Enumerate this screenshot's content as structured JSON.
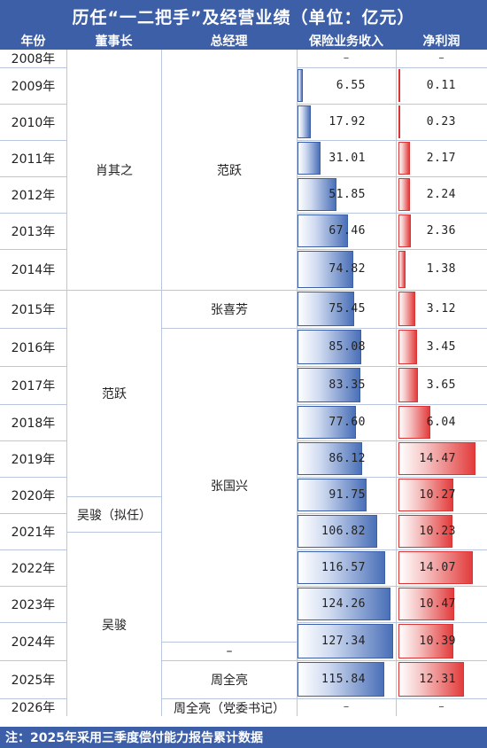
{
  "title": "历任“一二把手”及经营业绩（单位：亿元）",
  "headers": {
    "year": "年份",
    "chairman": "董事长",
    "gm": "总经理",
    "revenue": "保险业务收入",
    "net_profit": "净利润"
  },
  "chairmen": [
    {
      "name": "肖其之"
    },
    {
      "name": "范跃"
    },
    {
      "name": "吴骏（拟任）"
    },
    {
      "name": "吴骏"
    }
  ],
  "gms": [
    {
      "name": "范跃"
    },
    {
      "name": "张喜芳"
    },
    {
      "name": "张国兴"
    },
    {
      "name": "–"
    },
    {
      "name": "周全亮"
    },
    {
      "name": "周全亮（党委书记）"
    }
  ],
  "rows": [
    {
      "year": "2008年",
      "revenue": "–",
      "net_profit": "–"
    },
    {
      "year": "2009年",
      "revenue": "6.55",
      "net_profit": "0.11"
    },
    {
      "year": "2010年",
      "revenue": "17.92",
      "net_profit": "0.23"
    },
    {
      "year": "2011年",
      "revenue": "31.01",
      "net_profit": "2.17"
    },
    {
      "year": "2012年",
      "revenue": "51.85",
      "net_profit": "2.24"
    },
    {
      "year": "2013年",
      "revenue": "67.46",
      "net_profit": "2.36"
    },
    {
      "year": "2014年",
      "revenue": "74.82",
      "net_profit": "1.38"
    },
    {
      "year": "2015年",
      "revenue": "75.45",
      "net_profit": "3.12"
    },
    {
      "year": "2016年",
      "revenue": "85.08",
      "net_profit": "3.45"
    },
    {
      "year": "2017年",
      "revenue": "83.35",
      "net_profit": "3.65"
    },
    {
      "year": "2018年",
      "revenue": "77.60",
      "net_profit": "6.04"
    },
    {
      "year": "2019年",
      "revenue": "86.12",
      "net_profit": "14.47"
    },
    {
      "year": "2020年",
      "revenue": "91.75",
      "net_profit": "10.27"
    },
    {
      "year": "2021年",
      "revenue": "106.82",
      "net_profit": "10.23"
    },
    {
      "year": "2022年",
      "revenue": "116.57",
      "net_profit": "14.07"
    },
    {
      "year": "2023年",
      "revenue": "124.26",
      "net_profit": "10.47"
    },
    {
      "year": "2024年",
      "revenue": "127.34",
      "net_profit": "10.39"
    },
    {
      "year": "2025年",
      "revenue": "115.84",
      "net_profit": "12.31"
    },
    {
      "year": "2026年",
      "revenue": "–",
      "net_profit": "–"
    }
  ],
  "footer": "注：2025年采用三季度偿付能力报告累计数据",
  "colors": {
    "header_bg": "#3d5fa8",
    "revenue_bar": "#4a70b8",
    "profit_bar": "#e33c3c"
  }
}
